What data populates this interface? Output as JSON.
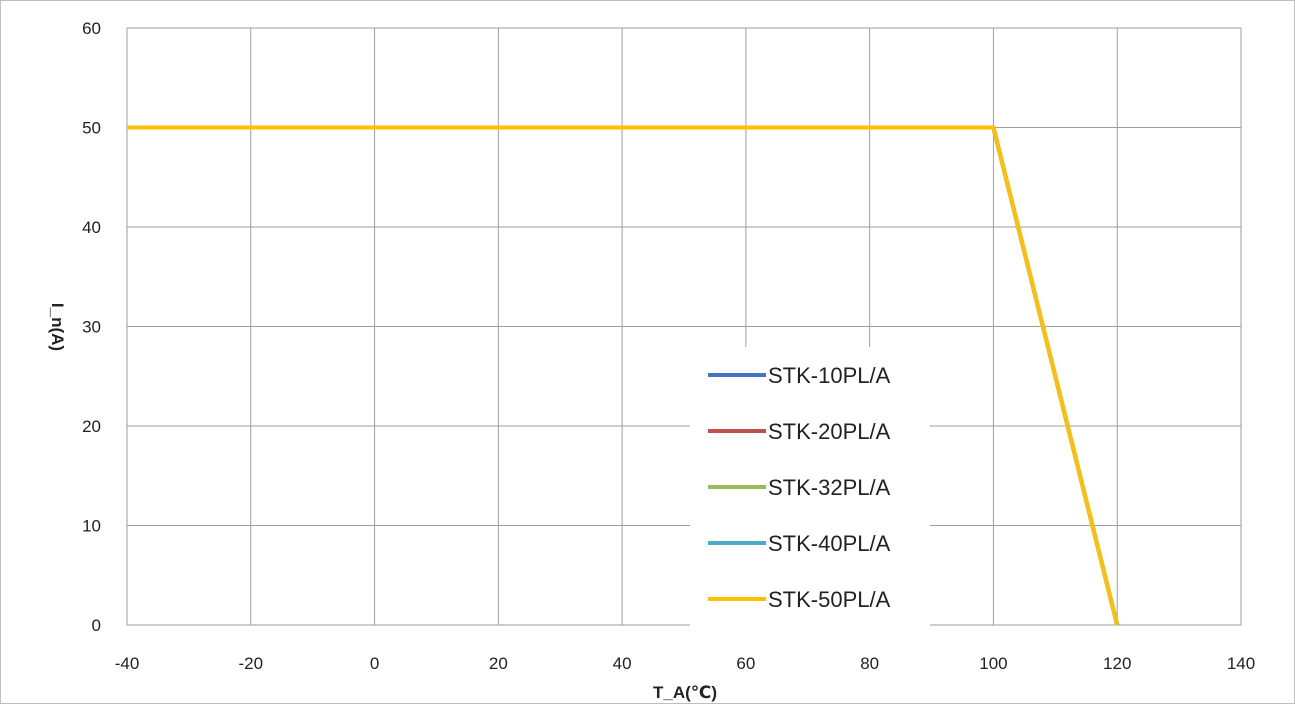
{
  "chart_data": {
    "type": "line",
    "xlabel": "T_A(℃)",
    "ylabel": "I_n(A)",
    "xlim": [
      -40,
      140
    ],
    "ylim": [
      0,
      60
    ],
    "x_ticks": [
      -40,
      -20,
      0,
      20,
      40,
      60,
      80,
      100,
      120,
      140
    ],
    "y_ticks": [
      0,
      10,
      20,
      30,
      40,
      50,
      60
    ],
    "grid": true,
    "legend_position": "center-right",
    "series": [
      {
        "name": "STK-10PL/A",
        "color": "#4472C4",
        "points": [
          [
            -40,
            50
          ],
          [
            100,
            50
          ],
          [
            120,
            0
          ]
        ]
      },
      {
        "name": "STK-20PL/A",
        "color": "#C0504D",
        "points": [
          [
            -40,
            50
          ],
          [
            100,
            50
          ],
          [
            120,
            0
          ]
        ]
      },
      {
        "name": "STK-32PL/A",
        "color": "#9BBB59",
        "points": [
          [
            -40,
            50
          ],
          [
            100,
            50
          ],
          [
            120,
            0
          ]
        ]
      },
      {
        "name": "STK-40PL/A",
        "color": "#4BACC6",
        "points": [
          [
            -40,
            50
          ],
          [
            100,
            50
          ],
          [
            120,
            0
          ]
        ]
      },
      {
        "name": "STK-50PL/A",
        "color": "#FFC000",
        "points": [
          [
            -40,
            50
          ],
          [
            100,
            50
          ],
          [
            120,
            0
          ]
        ]
      }
    ]
  }
}
